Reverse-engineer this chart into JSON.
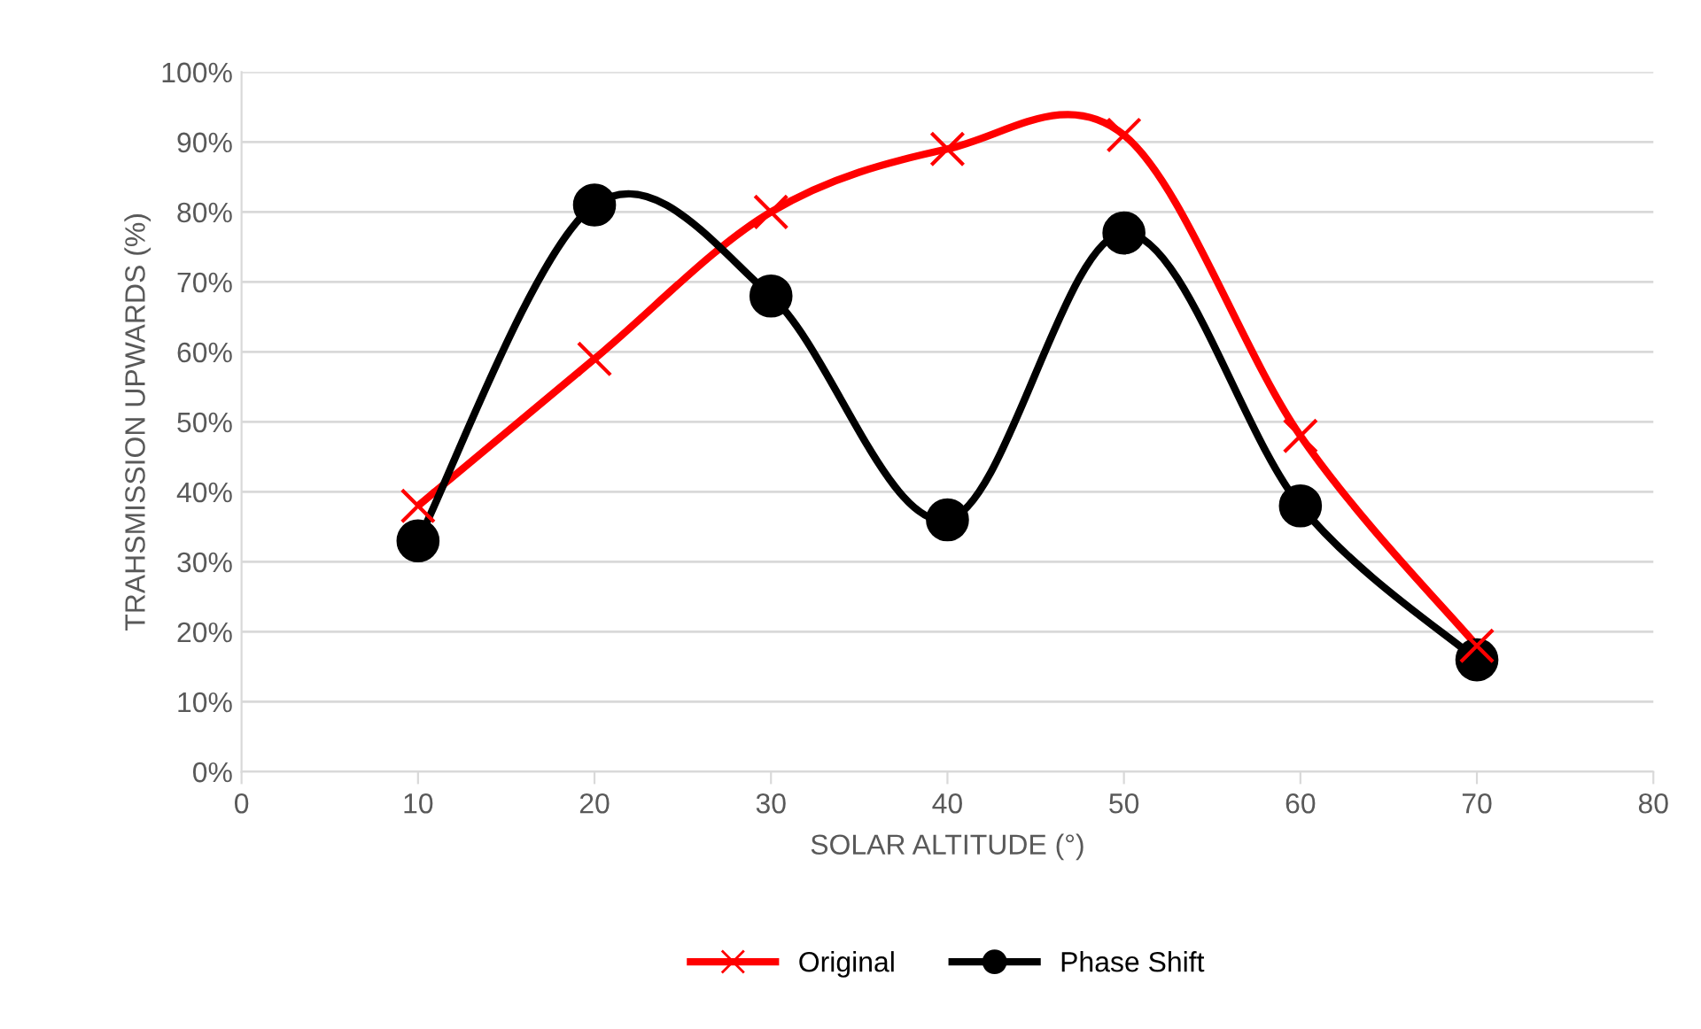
{
  "chart_data": {
    "type": "line",
    "xlabel": "SOLAR ALTITUDE (°)",
    "ylabel": "TRAHSMISSION UPWARDS (%)",
    "x": [
      10,
      20,
      30,
      40,
      50,
      60,
      70
    ],
    "series": [
      {
        "name": "Original",
        "color": "#ff0000",
        "marker": "cross",
        "values": [
          38,
          59,
          80,
          89,
          91,
          48,
          18
        ]
      },
      {
        "name": "Phase Shift",
        "color": "#000000",
        "marker": "circle",
        "values": [
          33,
          81,
          68,
          36,
          77,
          38,
          16
        ]
      }
    ],
    "xlim": [
      0,
      80
    ],
    "xticks": [
      0,
      10,
      20,
      30,
      40,
      50,
      60,
      70,
      80
    ],
    "ylim": [
      0,
      100
    ],
    "yticks": [
      {
        "value": 0,
        "label": "0%"
      },
      {
        "value": 10,
        "label": "10%"
      },
      {
        "value": 20,
        "label": "20%"
      },
      {
        "value": 30,
        "label": "30%"
      },
      {
        "value": 40,
        "label": "40%"
      },
      {
        "value": 50,
        "label": "50%"
      },
      {
        "value": 60,
        "label": "60%"
      },
      {
        "value": 70,
        "label": "70%"
      },
      {
        "value": 80,
        "label": "80%"
      },
      {
        "value": 90,
        "label": "90%"
      },
      {
        "value": 100,
        "label": "100%"
      }
    ],
    "grid": "y",
    "legend": "bottom",
    "line_style": "solid"
  }
}
